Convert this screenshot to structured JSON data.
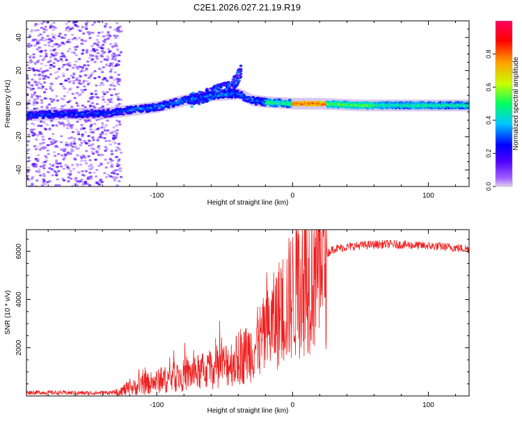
{
  "title": "C2E1.2026.027.21.19.R19",
  "chart_data": [
    {
      "type": "heatmap",
      "name": "spectrogram",
      "xlabel": "Height of straight line (km)",
      "ylabel": "Frequency (Hz)",
      "xlim": [
        -196,
        130
      ],
      "ylim": [
        -50,
        50
      ],
      "xticks": [
        -100,
        0,
        100
      ],
      "xtick_labels": [
        "-100",
        "0",
        "100"
      ],
      "yticks": [
        -40,
        -20,
        0,
        20,
        40
      ],
      "ytick_labels": [
        "-40",
        "-20",
        "0",
        "20",
        "40"
      ],
      "colorbar": {
        "label": "Normalized spectral amplitude",
        "range": [
          0,
          1
        ],
        "ticks": [
          0.0,
          0.2,
          0.4,
          0.6,
          0.8
        ],
        "tick_labels": [
          "0.0",
          "0.2",
          "0.4",
          "0.6",
          "0.8"
        ],
        "colors": [
          "#e0d0f0",
          "#7f00ff",
          "#0000ff",
          "#00c8ff",
          "#00ff60",
          "#c8ff00",
          "#ffa000",
          "#ff0000",
          "#ff0060"
        ]
      },
      "band_centerline": {
        "x": [
          -196,
          -160,
          -140,
          -120,
          -100,
          -80,
          -60,
          -40,
          -30,
          -20,
          0,
          20,
          50,
          80,
          100,
          130
        ],
        "y": [
          -7,
          -6,
          -6,
          -4,
          -2,
          2,
          5,
          6,
          2,
          1,
          0,
          0,
          -1,
          -1,
          -1,
          -1
        ]
      },
      "upper_branch": {
        "x": [
          -75,
          -60,
          -50,
          -42,
          -38
        ],
        "y": [
          2,
          6,
          9,
          13,
          20
        ]
      },
      "peak_amplitude_region_km": [
        0,
        25
      ]
    },
    {
      "type": "line",
      "name": "snr",
      "xlabel": "Height of straight line (km)",
      "ylabel": "SNR (10 * v/v)",
      "xlim": [
        -196,
        130
      ],
      "ylim": [
        0,
        6900
      ],
      "xticks": [
        -100,
        0,
        100
      ],
      "xtick_labels": [
        "-100",
        "0",
        "100"
      ],
      "yticks": [
        2000,
        4000,
        6000
      ],
      "ytick_labels": [
        "2000",
        "4000",
        "6000"
      ],
      "color": "#ee2020",
      "trend": {
        "x": [
          -196,
          -150,
          -130,
          -120,
          -100,
          -80,
          -60,
          -40,
          -30,
          -20,
          -10,
          0,
          10,
          20,
          30,
          50,
          70,
          90,
          110,
          130
        ],
        "y": [
          150,
          120,
          150,
          300,
          600,
          850,
          1100,
          1500,
          1900,
          2500,
          3400,
          4200,
          5000,
          5700,
          6100,
          6250,
          6300,
          6250,
          6200,
          6100
        ]
      }
    }
  ]
}
